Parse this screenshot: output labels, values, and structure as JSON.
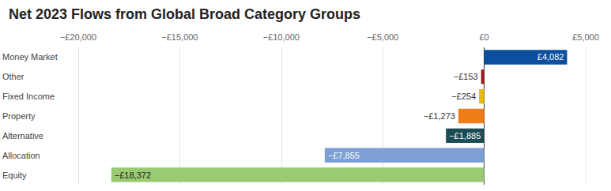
{
  "chart_data": {
    "type": "bar",
    "title": "Net 2023 Flows from Global Broad Category Groups",
    "orientation": "horizontal",
    "categories": [
      "Money Market",
      "Other",
      "Fixed Income",
      "Property",
      "Alternative",
      "Allocation",
      "Equity"
    ],
    "values": [
      4082,
      -153,
      -254,
      -1273,
      -1885,
      -7855,
      -18372
    ],
    "value_labels": [
      "£4,082",
      "−£153",
      "−£254",
      "−£1,273",
      "−£1,885",
      "−£7,855",
      "−£18,372"
    ],
    "colors": [
      "#0b4f9e",
      "#9a1b1b",
      "#e8b90c",
      "#f07d1a",
      "#1c4c55",
      "#7e9fd3",
      "#9acb72"
    ],
    "xlim": [
      -20000,
      5000
    ],
    "xticks": [
      {
        "value": -20000,
        "label": "−£20,000"
      },
      {
        "value": -15000,
        "label": "−£15,000"
      },
      {
        "value": -10000,
        "label": "−£10,000"
      },
      {
        "value": -5000,
        "label": "−£5,000"
      },
      {
        "value": 0,
        "label": "£0"
      },
      {
        "value": 5000,
        "label": "£5,000"
      }
    ],
    "grid": true,
    "data_labels": true
  }
}
